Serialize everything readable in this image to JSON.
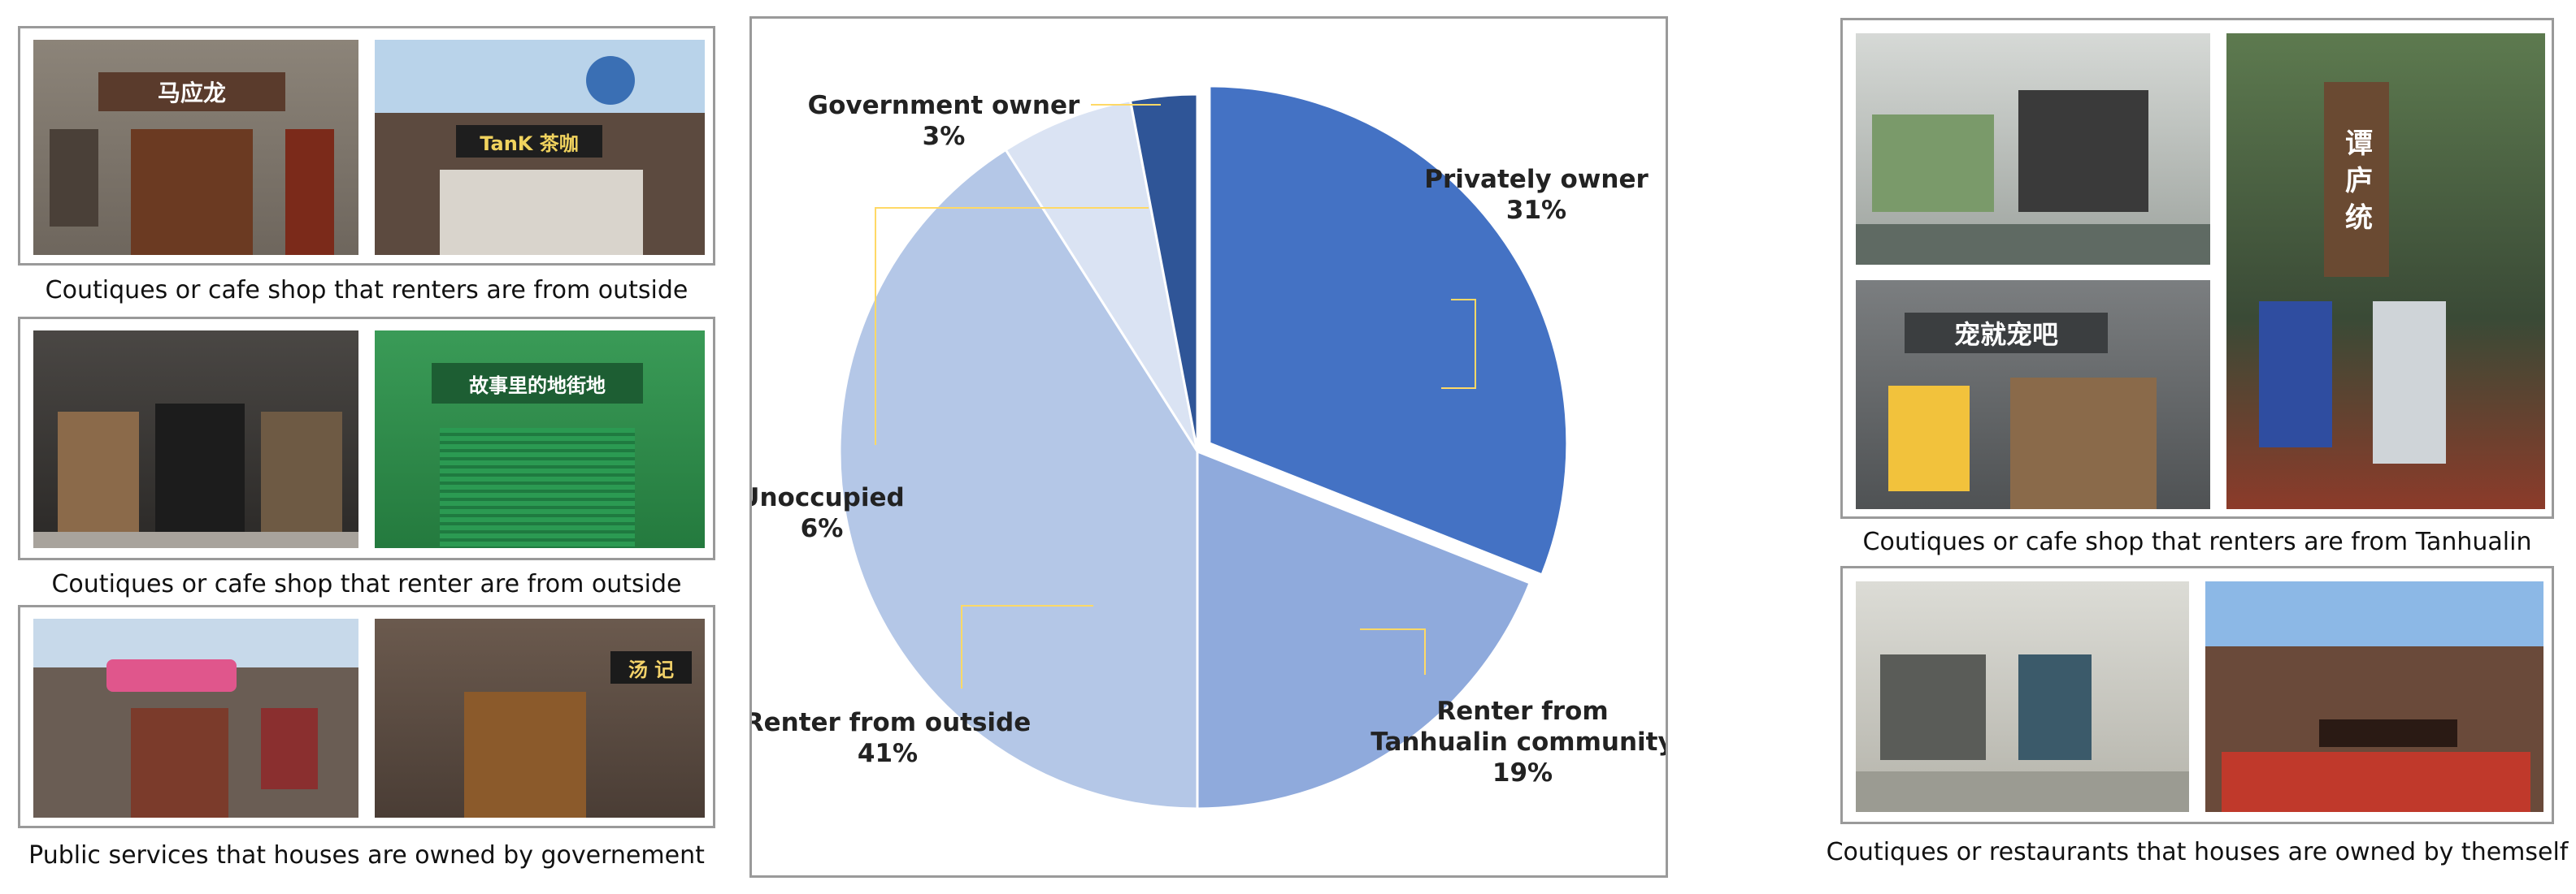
{
  "captions": {
    "left_top": "Coutiques or cafe shop that renters are from outside",
    "left_mid": "Coutiques or cafe shop that renter are from outside",
    "left_bottom": "Public services that houses are owned by governement",
    "right_top": "Coutiques or cafe shop  that renters are from Tanhualin",
    "right_bottom": "Coutiques or restaurants that houses are owned by themself"
  },
  "photo_signs": {
    "shop_ma": "马应龙",
    "shop_tank": "TanK 茶咖",
    "shop_green": "故事里的地街地",
    "shop_pet": "宠就宠吧",
    "shop_tan": "谭 庐 统",
    "shop_soup": "汤 记"
  },
  "chart_data": {
    "type": "pie",
    "categories": [
      "Privately owner",
      "Renter from Tanhualin community",
      "Renter from outside",
      "Unoccupied",
      "Government owner"
    ],
    "values": [
      31,
      19,
      41,
      6,
      3
    ],
    "value_labels": [
      "31%",
      "19%",
      "41%",
      "6%",
      "3%"
    ],
    "label_lines": [
      [
        "Privately owner"
      ],
      [
        "Renter from",
        "Tanhualin community"
      ],
      [
        "Renter from outside"
      ],
      [
        "Unoccupied"
      ],
      [
        "Government owner"
      ]
    ],
    "colors": [
      "#4472c4",
      "#8faadc",
      "#b4c7e7",
      "#dae3f3",
      "#2f5597"
    ],
    "leader_line_color": "#ffd966",
    "start_angle_deg": 0,
    "direction": "clockwise",
    "exploded_slice": "Privately owner"
  }
}
